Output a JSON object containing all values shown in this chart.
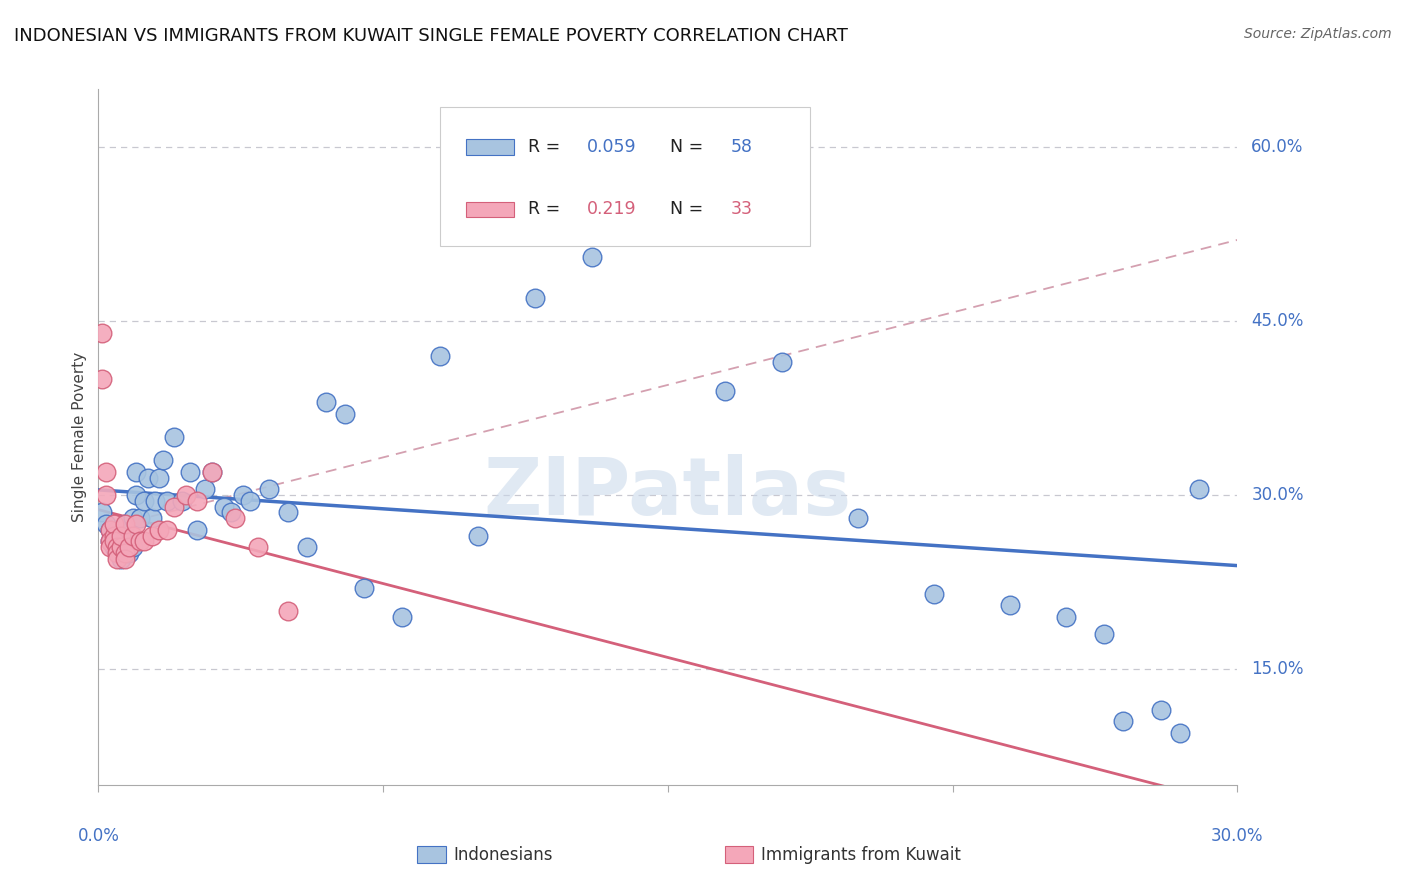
{
  "title": "INDONESIAN VS IMMIGRANTS FROM KUWAIT SINGLE FEMALE POVERTY CORRELATION CHART",
  "source": "Source: ZipAtlas.com",
  "ylabel": "Single Female Poverty",
  "ytick_labels": [
    "15.0%",
    "30.0%",
    "45.0%",
    "60.0%"
  ],
  "ytick_values": [
    0.15,
    0.3,
    0.45,
    0.6
  ],
  "xlim": [
    0.0,
    0.3
  ],
  "ylim": [
    0.05,
    0.65
  ],
  "blue_r": 0.059,
  "blue_n": 58,
  "pink_r": 0.219,
  "pink_n": 33,
  "blue_color": "#a8c4e0",
  "pink_color": "#f4a7b9",
  "blue_line_color": "#4472c4",
  "pink_line_color": "#d4607a",
  "ref_line_color": "#c8a0a8",
  "watermark": "ZIPatlas",
  "indonesians_x": [
    0.001,
    0.002,
    0.003,
    0.003,
    0.004,
    0.005,
    0.005,
    0.006,
    0.006,
    0.007,
    0.007,
    0.008,
    0.008,
    0.009,
    0.009,
    0.01,
    0.01,
    0.011,
    0.012,
    0.013,
    0.014,
    0.015,
    0.016,
    0.017,
    0.018,
    0.02,
    0.022,
    0.024,
    0.026,
    0.028,
    0.03,
    0.033,
    0.035,
    0.038,
    0.04,
    0.045,
    0.05,
    0.055,
    0.06,
    0.065,
    0.07,
    0.08,
    0.09,
    0.1,
    0.115,
    0.13,
    0.15,
    0.165,
    0.18,
    0.2,
    0.22,
    0.24,
    0.255,
    0.265,
    0.27,
    0.28,
    0.285,
    0.29
  ],
  "indonesians_y": [
    0.285,
    0.275,
    0.27,
    0.26,
    0.255,
    0.27,
    0.265,
    0.245,
    0.26,
    0.265,
    0.275,
    0.25,
    0.26,
    0.255,
    0.28,
    0.3,
    0.32,
    0.28,
    0.295,
    0.315,
    0.28,
    0.295,
    0.315,
    0.33,
    0.295,
    0.35,
    0.295,
    0.32,
    0.27,
    0.305,
    0.32,
    0.29,
    0.285,
    0.3,
    0.295,
    0.305,
    0.285,
    0.255,
    0.38,
    0.37,
    0.22,
    0.195,
    0.42,
    0.265,
    0.47,
    0.505,
    0.555,
    0.39,
    0.415,
    0.28,
    0.215,
    0.205,
    0.195,
    0.18,
    0.105,
    0.115,
    0.095,
    0.305
  ],
  "kuwait_x": [
    0.001,
    0.001,
    0.002,
    0.002,
    0.003,
    0.003,
    0.003,
    0.004,
    0.004,
    0.004,
    0.005,
    0.005,
    0.005,
    0.006,
    0.006,
    0.007,
    0.007,
    0.007,
    0.008,
    0.009,
    0.01,
    0.011,
    0.012,
    0.014,
    0.016,
    0.018,
    0.02,
    0.023,
    0.026,
    0.03,
    0.036,
    0.042,
    0.05
  ],
  "kuwait_y": [
    0.44,
    0.4,
    0.32,
    0.3,
    0.27,
    0.26,
    0.255,
    0.265,
    0.275,
    0.26,
    0.255,
    0.25,
    0.245,
    0.255,
    0.265,
    0.25,
    0.245,
    0.275,
    0.255,
    0.265,
    0.275,
    0.26,
    0.26,
    0.265,
    0.27,
    0.27,
    0.29,
    0.3,
    0.295,
    0.32,
    0.28,
    0.255,
    0.2
  ]
}
